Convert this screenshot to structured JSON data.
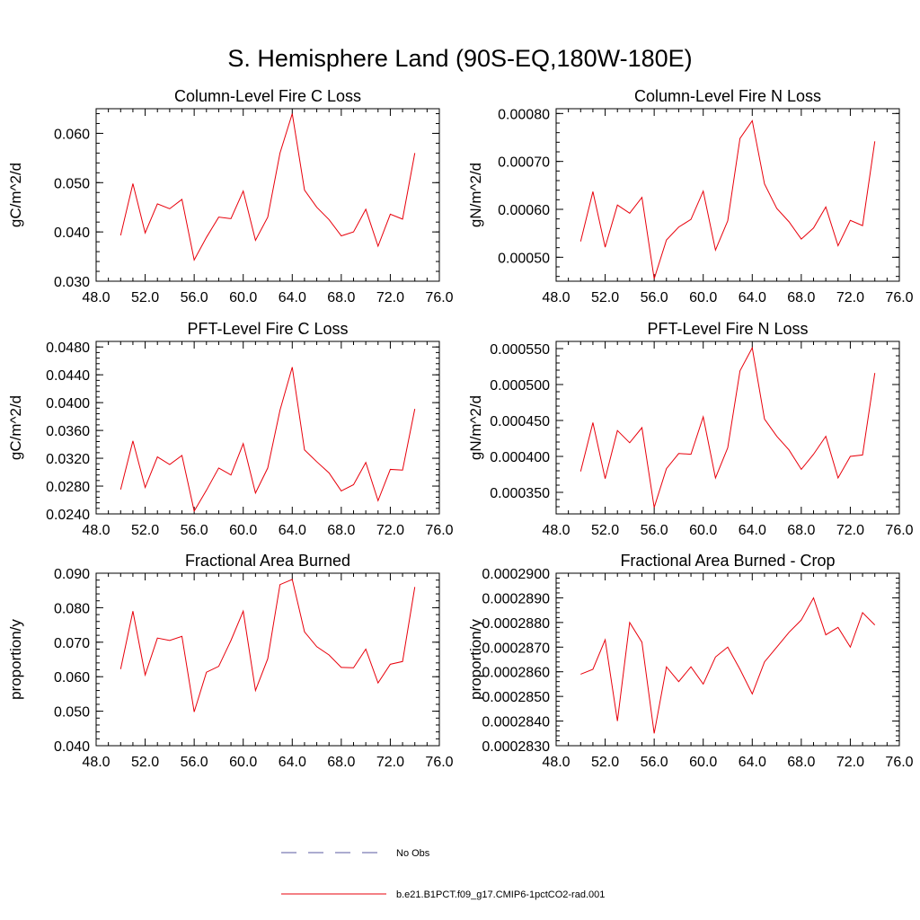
{
  "figure_title": "S. Hemisphere Land (90S-EQ,180W-180E)",
  "legend": {
    "entries": [
      {
        "label": "No Obs",
        "color": "#5a5aa0",
        "style": "dashed"
      },
      {
        "label": "b.e21.B1PCT.f09_g17.CMIP6-1pctCO2-rad.001",
        "color": "#e8000b",
        "style": "solid"
      }
    ]
  },
  "series_color": "#e8000b",
  "chart_data": [
    {
      "type": "line",
      "title": "Column-Level Fire C Loss",
      "ylabel": "gC/m^2/d",
      "xlim": [
        48,
        76
      ],
      "ylim": [
        0.03,
        0.065
      ],
      "xticks": [
        "48.0",
        "52.0",
        "56.0",
        "60.0",
        "64.0",
        "68.0",
        "72.0",
        "76.0"
      ],
      "yticks": [
        {
          "value": 0.03,
          "label": "0.030"
        },
        {
          "value": 0.04,
          "label": "0.040"
        },
        {
          "value": 0.05,
          "label": "0.050"
        },
        {
          "value": 0.06,
          "label": "0.060"
        }
      ],
      "x": [
        50,
        51,
        52,
        53,
        54,
        55,
        56,
        57,
        58,
        59,
        60,
        61,
        62,
        63,
        64,
        65,
        66,
        67,
        68,
        69,
        70,
        71,
        72,
        73,
        74
      ],
      "y": [
        0.0393,
        0.0498,
        0.0398,
        0.0457,
        0.0447,
        0.0466,
        0.0343,
        0.0389,
        0.043,
        0.0427,
        0.0483,
        0.0383,
        0.043,
        0.056,
        0.064,
        0.0485,
        0.045,
        0.0425,
        0.0392,
        0.04,
        0.0446,
        0.0371,
        0.0436,
        0.0426,
        0.056
      ]
    },
    {
      "type": "line",
      "title": "Column-Level Fire N Loss",
      "ylabel": "gN/m^2/d",
      "xlim": [
        48,
        76
      ],
      "ylim": [
        0.00045,
        0.00081
      ],
      "xticks": [
        "48.0",
        "52.0",
        "56.0",
        "60.0",
        "64.0",
        "68.0",
        "72.0",
        "76.0"
      ],
      "yticks": [
        {
          "value": 0.0005,
          "label": "0.00050"
        },
        {
          "value": 0.0006,
          "label": "0.00060"
        },
        {
          "value": 0.0007,
          "label": "0.00070"
        },
        {
          "value": 0.0008,
          "label": "0.00080"
        }
      ],
      "x": [
        50,
        51,
        52,
        53,
        54,
        55,
        56,
        57,
        58,
        59,
        60,
        61,
        62,
        63,
        64,
        65,
        66,
        67,
        68,
        69,
        70,
        71,
        72,
        73,
        74
      ],
      "y": [
        0.000533,
        0.000637,
        0.000521,
        0.000609,
        0.000592,
        0.000625,
        0.000455,
        0.000536,
        0.000563,
        0.000579,
        0.000638,
        0.000515,
        0.000576,
        0.000748,
        0.000785,
        0.000653,
        0.000602,
        0.000574,
        0.000538,
        0.000561,
        0.000605,
        0.000524,
        0.000577,
        0.000566,
        0.000742
      ]
    },
    {
      "type": "line",
      "title": "PFT-Level Fire C Loss",
      "ylabel": "gC/m^2/d",
      "xlim": [
        48,
        76
      ],
      "ylim": [
        0.024,
        0.0488
      ],
      "xticks": [
        "48.0",
        "52.0",
        "56.0",
        "60.0",
        "64.0",
        "68.0",
        "72.0",
        "76.0"
      ],
      "yticks": [
        {
          "value": 0.024,
          "label": "0.0240"
        },
        {
          "value": 0.028,
          "label": "0.0280"
        },
        {
          "value": 0.032,
          "label": "0.0320"
        },
        {
          "value": 0.036,
          "label": "0.0360"
        },
        {
          "value": 0.04,
          "label": "0.0400"
        },
        {
          "value": 0.044,
          "label": "0.0440"
        },
        {
          "value": 0.048,
          "label": "0.0480"
        }
      ],
      "x": [
        50,
        51,
        52,
        53,
        54,
        55,
        56,
        57,
        58,
        59,
        60,
        61,
        62,
        63,
        64,
        65,
        66,
        67,
        68,
        69,
        70,
        71,
        72,
        73,
        74
      ],
      "y": [
        0.0275,
        0.0345,
        0.0278,
        0.0322,
        0.0311,
        0.0324,
        0.0244,
        0.0274,
        0.0306,
        0.0296,
        0.0341,
        0.027,
        0.0306,
        0.0389,
        0.0451,
        0.0332,
        0.0315,
        0.0299,
        0.0273,
        0.0282,
        0.0314,
        0.0259,
        0.0304,
        0.0303,
        0.0391
      ]
    },
    {
      "type": "line",
      "title": "PFT-Level Fire N Loss",
      "ylabel": "gN/m^2/d",
      "xlim": [
        48,
        76
      ],
      "ylim": [
        0.00032,
        0.00056
      ],
      "xticks": [
        "48.0",
        "52.0",
        "56.0",
        "60.0",
        "64.0",
        "68.0",
        "72.0",
        "76.0"
      ],
      "yticks": [
        {
          "value": 0.00035,
          "label": "0.000350"
        },
        {
          "value": 0.0004,
          "label": "0.000400"
        },
        {
          "value": 0.00045,
          "label": "0.000450"
        },
        {
          "value": 0.0005,
          "label": "0.000500"
        },
        {
          "value": 0.00055,
          "label": "0.000550"
        }
      ],
      "x": [
        50,
        51,
        52,
        53,
        54,
        55,
        56,
        57,
        58,
        59,
        60,
        61,
        62,
        63,
        64,
        65,
        66,
        67,
        68,
        69,
        70,
        71,
        72,
        73,
        74
      ],
      "y": [
        0.000379,
        0.000447,
        0.000369,
        0.000436,
        0.000419,
        0.00044,
        0.000329,
        0.000383,
        0.000404,
        0.000403,
        0.000455,
        0.00037,
        0.000412,
        0.000519,
        0.000551,
        0.000452,
        0.000428,
        0.000409,
        0.000382,
        0.000403,
        0.000428,
        0.00037,
        0.0004,
        0.000402,
        0.000516
      ]
    },
    {
      "type": "line",
      "title": "Fractional Area Burned",
      "ylabel": "proportion/y",
      "xlim": [
        48,
        76
      ],
      "ylim": [
        0.04,
        0.09
      ],
      "xticks": [
        "48.0",
        "52.0",
        "56.0",
        "60.0",
        "64.0",
        "68.0",
        "72.0",
        "76.0"
      ],
      "yticks": [
        {
          "value": 0.04,
          "label": "0.040"
        },
        {
          "value": 0.05,
          "label": "0.050"
        },
        {
          "value": 0.06,
          "label": "0.060"
        },
        {
          "value": 0.07,
          "label": "0.070"
        },
        {
          "value": 0.08,
          "label": "0.080"
        },
        {
          "value": 0.09,
          "label": "0.090"
        }
      ],
      "x": [
        50,
        51,
        52,
        53,
        54,
        55,
        56,
        57,
        58,
        59,
        60,
        61,
        62,
        63,
        64,
        65,
        66,
        67,
        68,
        69,
        70,
        71,
        72,
        73,
        74
      ],
      "y": [
        0.0622,
        0.079,
        0.0605,
        0.0712,
        0.0705,
        0.0717,
        0.0498,
        0.0613,
        0.063,
        0.0705,
        0.079,
        0.056,
        0.0652,
        0.0867,
        0.0882,
        0.073,
        0.0687,
        0.0663,
        0.0627,
        0.0626,
        0.068,
        0.0582,
        0.0636,
        0.0644,
        0.086
      ]
    },
    {
      "type": "line",
      "title": "Fractional Area Burned - Crop",
      "ylabel": "proportion/y",
      "xlim": [
        48,
        76
      ],
      "ylim": [
        0.000283,
        0.00029
      ],
      "xticks": [
        "48.0",
        "52.0",
        "56.0",
        "60.0",
        "64.0",
        "68.0",
        "72.0",
        "76.0"
      ],
      "yticks": [
        {
          "value": 0.000283,
          "label": "0.0002830"
        },
        {
          "value": 0.000284,
          "label": "0.0002840"
        },
        {
          "value": 0.000285,
          "label": "0.0002850"
        },
        {
          "value": 0.000286,
          "label": "0.0002860"
        },
        {
          "value": 0.000287,
          "label": "0.0002870"
        },
        {
          "value": 0.000288,
          "label": "0.0002880"
        },
        {
          "value": 0.000289,
          "label": "0.0002890"
        },
        {
          "value": 0.00029,
          "label": "0.0002900"
        }
      ],
      "x": [
        50,
        51,
        52,
        53,
        54,
        55,
        56,
        57,
        58,
        59,
        60,
        61,
        62,
        63,
        64,
        65,
        66,
        67,
        68,
        69,
        70,
        71,
        72,
        73,
        74
      ],
      "y": [
        0.0002859,
        0.0002861,
        0.0002873,
        0.000284,
        0.000288,
        0.0002872,
        0.0002835,
        0.0002862,
        0.0002856,
        0.0002862,
        0.0002855,
        0.0002866,
        0.000287,
        0.0002861,
        0.0002851,
        0.0002864,
        0.000287,
        0.0002876,
        0.0002881,
        0.000289,
        0.0002875,
        0.0002878,
        0.000287,
        0.0002884,
        0.0002879
      ]
    }
  ]
}
